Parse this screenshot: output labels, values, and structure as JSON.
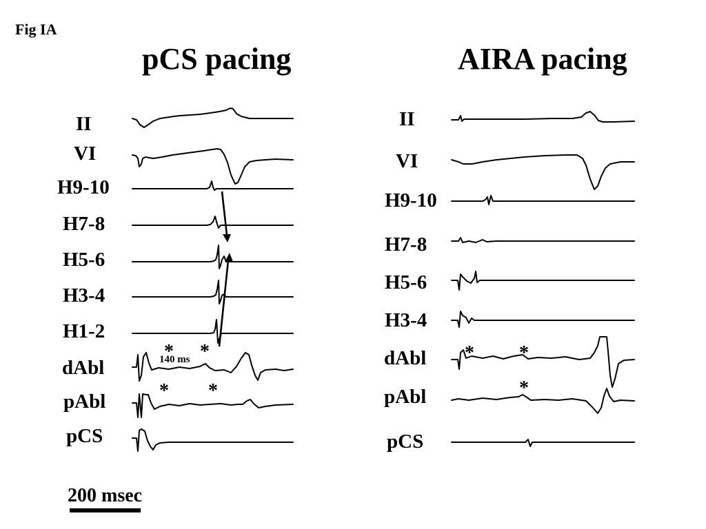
{
  "figure_label": "Fig IA",
  "panels": {
    "left": {
      "title": "pCS pacing",
      "leads": [
        "II",
        "VI",
        "H9-10",
        "H7-8",
        "H5-6",
        "H3-4",
        "H1-2",
        "dAbl",
        "pAbl",
        "pCS"
      ],
      "interval_label": "140 ms",
      "markers": [
        "*",
        "*",
        "*",
        "*"
      ]
    },
    "right": {
      "title": "AIRA pacing",
      "leads": [
        "II",
        "VI",
        "H9-10",
        "H7-8",
        "H5-6",
        "H3-4",
        "dAbl",
        "pAbl",
        "pCS"
      ],
      "markers": [
        "*",
        "*",
        "*"
      ]
    }
  },
  "scale_bar": {
    "label": "200 msec"
  }
}
